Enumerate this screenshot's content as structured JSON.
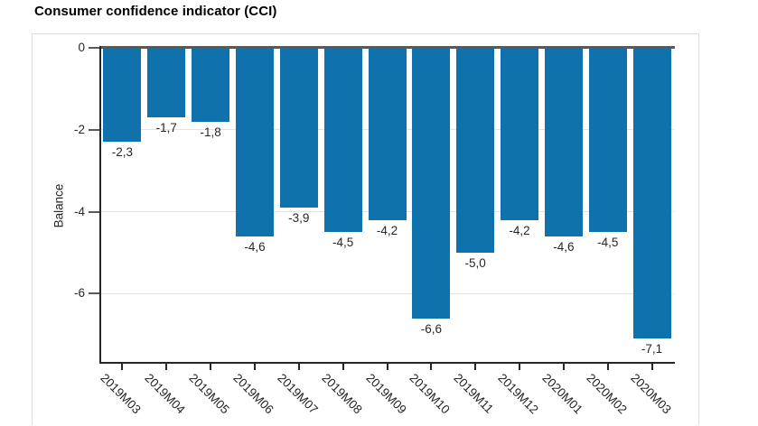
{
  "chart_data": {
    "type": "bar",
    "title": "Consumer confidence indicator (CCI)",
    "xlabel": "",
    "ylabel": "Balance",
    "categories": [
      "2019M03",
      "2019M04",
      "2019M05",
      "2019M06",
      "2019M07",
      "2019M08",
      "2019M09",
      "2019M10",
      "2019M11",
      "2019M12",
      "2020M01",
      "2020M02",
      "2020M03"
    ],
    "values": [
      -2.3,
      -1.7,
      -1.8,
      -4.6,
      -3.9,
      -4.5,
      -4.2,
      -6.6,
      -5.0,
      -4.2,
      -4.6,
      -4.5,
      -7.1
    ],
    "value_labels": [
      "-2,3",
      "-1,7",
      "-1,8",
      "-4,6",
      "-3,9",
      "-4,5",
      "-4,2",
      "-6,6",
      "-5,0",
      "-4,2",
      "-4,6",
      "-4,5",
      "-7,1"
    ],
    "y_ticks": [
      {
        "value": 0,
        "label": "0"
      },
      {
        "value": -2,
        "label": "-2"
      },
      {
        "value": -4,
        "label": "-4"
      },
      {
        "value": -6,
        "label": "-6"
      }
    ],
    "ylim": [
      -7.7,
      0
    ],
    "grid": "horizontal",
    "legend": "none",
    "colors": {
      "bar": "#0f72ad",
      "zero_line": "#595959",
      "axis": "#262626",
      "grid": "#e3e3e3",
      "text": "#262626",
      "frame_border": "#dcdcdc"
    }
  }
}
